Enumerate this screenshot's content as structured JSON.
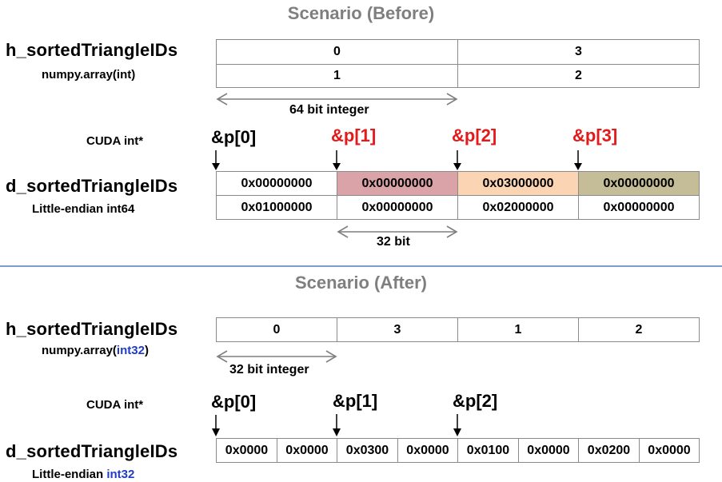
{
  "before": {
    "title": "Scenario (Before)",
    "host": {
      "name": "h_sortedTriangleIDs",
      "type": "numpy.array(int)",
      "row1": [
        "0",
        "3"
      ],
      "row2": [
        "1",
        "2"
      ],
      "width_note": "64 bit integer"
    },
    "cuda_label": "CUDA int*",
    "pointers": [
      "&p[0]",
      "&p[1]",
      "&p[2]",
      "&p[3]"
    ],
    "device": {
      "name": "d_sortedTriangleIDs",
      "type": "Little-endian  int64",
      "row1": [
        "0x00000000",
        "0x00000000",
        "0x03000000",
        "0x00000000"
      ],
      "row2": [
        "0x01000000",
        "0x00000000",
        "0x02000000",
        "0x00000000"
      ],
      "width_note": "32 bit"
    },
    "colors": {
      "cell2": "#d9a3a7",
      "cell3": "#fbd4b4",
      "cell4": "#c4bd97",
      "pointer_red": "#e41a1a"
    }
  },
  "after": {
    "title": "Scenario (After)",
    "host": {
      "name": "h_sortedTriangleIDs",
      "type_prefix": "numpy.array(",
      "type_highlight": "int32",
      "type_suffix": ")",
      "row1": [
        "0",
        "3",
        "1",
        "2"
      ],
      "width_note": "32 bit integer"
    },
    "cuda_label": "CUDA int*",
    "pointers": [
      "&p[0]",
      "&p[1]",
      "&p[2]"
    ],
    "device": {
      "name": "d_sortedTriangleIDs",
      "type_prefix": "Little-endian  ",
      "type_highlight": "int32",
      "cells": [
        "0x0000",
        "0x0000",
        "0x0300",
        "0x0000",
        "0x0100",
        "0x0000",
        "0x0200",
        "0x0000"
      ]
    }
  }
}
